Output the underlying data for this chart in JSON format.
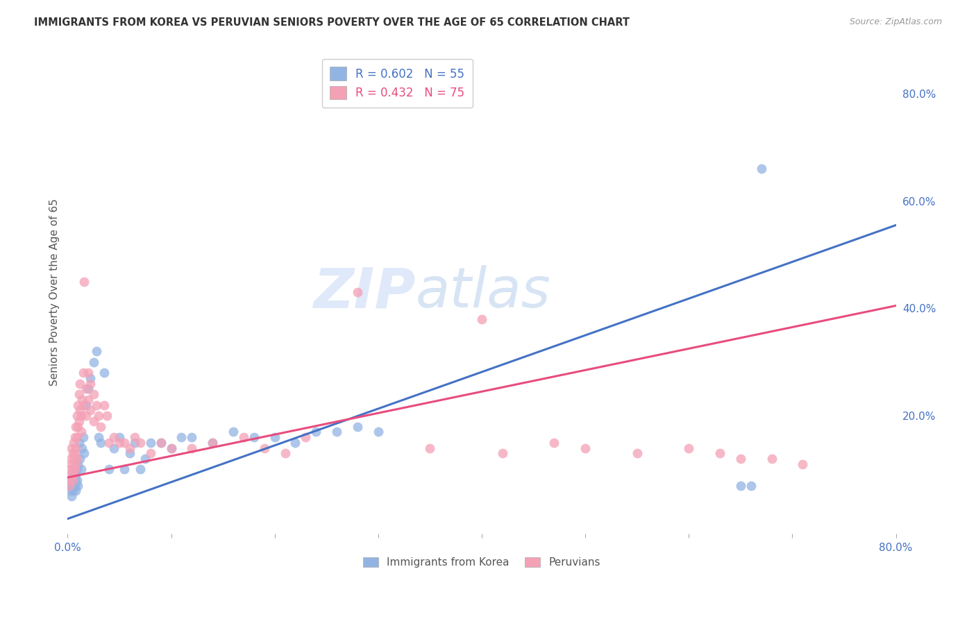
{
  "title": "IMMIGRANTS FROM KOREA VS PERUVIAN SENIORS POVERTY OVER THE AGE OF 65 CORRELATION CHART",
  "source": "Source: ZipAtlas.com",
  "ylabel": "Seniors Poverty Over the Age of 65",
  "xlim": [
    0.0,
    0.8
  ],
  "ylim": [
    -0.02,
    0.88
  ],
  "right_yticks": [
    0.0,
    0.2,
    0.4,
    0.6,
    0.8
  ],
  "right_yticklabels": [
    "",
    "20.0%",
    "40.0%",
    "60.0%",
    "80.0%"
  ],
  "xticks": [
    0.0,
    0.1,
    0.2,
    0.3,
    0.4,
    0.5,
    0.6,
    0.7,
    0.8
  ],
  "xticklabels": [
    "0.0%",
    "",
    "",
    "",
    "",
    "",
    "",
    "",
    "80.0%"
  ],
  "korea_color": "#92b4e3",
  "peru_color": "#f4a0b5",
  "korea_line_color": "#4472c4",
  "peru_line_color": "#e84c7d",
  "korea_R": 0.602,
  "korea_N": 55,
  "peru_R": 0.432,
  "peru_N": 75,
  "watermark": "ZIPatlas",
  "korea_line_x": [
    0.0,
    0.8
  ],
  "korea_line_y": [
    0.008,
    0.555
  ],
  "peru_line_x": [
    0.0,
    0.8
  ],
  "peru_line_y": [
    0.085,
    0.405
  ],
  "korea_scatter_x": [
    0.002,
    0.003,
    0.004,
    0.004,
    0.005,
    0.005,
    0.006,
    0.006,
    0.007,
    0.007,
    0.008,
    0.008,
    0.009,
    0.009,
    0.01,
    0.01,
    0.011,
    0.012,
    0.013,
    0.014,
    0.015,
    0.016,
    0.018,
    0.02,
    0.022,
    0.025,
    0.028,
    0.03,
    0.032,
    0.035,
    0.04,
    0.045,
    0.05,
    0.055,
    0.06,
    0.065,
    0.07,
    0.075,
    0.08,
    0.09,
    0.1,
    0.11,
    0.12,
    0.14,
    0.16,
    0.18,
    0.2,
    0.22,
    0.24,
    0.26,
    0.28,
    0.3,
    0.65,
    0.66,
    0.67
  ],
  "korea_scatter_y": [
    0.07,
    0.06,
    0.08,
    0.05,
    0.09,
    0.06,
    0.07,
    0.1,
    0.08,
    0.07,
    0.09,
    0.06,
    0.08,
    0.1,
    0.11,
    0.07,
    0.15,
    0.12,
    0.1,
    0.14,
    0.16,
    0.13,
    0.22,
    0.25,
    0.27,
    0.3,
    0.32,
    0.16,
    0.15,
    0.28,
    0.1,
    0.14,
    0.16,
    0.1,
    0.13,
    0.15,
    0.1,
    0.12,
    0.15,
    0.15,
    0.14,
    0.16,
    0.16,
    0.15,
    0.17,
    0.16,
    0.16,
    0.15,
    0.17,
    0.17,
    0.18,
    0.17,
    0.07,
    0.07,
    0.66
  ],
  "peru_scatter_x": [
    0.001,
    0.002,
    0.002,
    0.003,
    0.003,
    0.004,
    0.004,
    0.005,
    0.005,
    0.005,
    0.006,
    0.006,
    0.006,
    0.007,
    0.007,
    0.007,
    0.008,
    0.008,
    0.008,
    0.009,
    0.009,
    0.009,
    0.01,
    0.01,
    0.011,
    0.011,
    0.012,
    0.012,
    0.013,
    0.013,
    0.014,
    0.015,
    0.015,
    0.016,
    0.018,
    0.018,
    0.02,
    0.02,
    0.022,
    0.022,
    0.025,
    0.025,
    0.028,
    0.03,
    0.032,
    0.035,
    0.038,
    0.04,
    0.045,
    0.05,
    0.055,
    0.06,
    0.065,
    0.07,
    0.08,
    0.09,
    0.1,
    0.12,
    0.14,
    0.17,
    0.19,
    0.21,
    0.23,
    0.28,
    0.35,
    0.4,
    0.42,
    0.47,
    0.5,
    0.55,
    0.6,
    0.63,
    0.65,
    0.68,
    0.71
  ],
  "peru_scatter_y": [
    0.08,
    0.1,
    0.07,
    0.12,
    0.09,
    0.14,
    0.11,
    0.1,
    0.13,
    0.08,
    0.15,
    0.12,
    0.09,
    0.16,
    0.13,
    0.1,
    0.18,
    0.14,
    0.11,
    0.2,
    0.16,
    0.12,
    0.22,
    0.18,
    0.24,
    0.19,
    0.26,
    0.21,
    0.2,
    0.17,
    0.23,
    0.28,
    0.22,
    0.45,
    0.25,
    0.2,
    0.28,
    0.23,
    0.26,
    0.21,
    0.24,
    0.19,
    0.22,
    0.2,
    0.18,
    0.22,
    0.2,
    0.15,
    0.16,
    0.15,
    0.15,
    0.14,
    0.16,
    0.15,
    0.13,
    0.15,
    0.14,
    0.14,
    0.15,
    0.16,
    0.14,
    0.13,
    0.16,
    0.43,
    0.14,
    0.38,
    0.13,
    0.15,
    0.14,
    0.13,
    0.14,
    0.13,
    0.12,
    0.12,
    0.11
  ],
  "grid_color": "#d8d8d8",
  "background_color": "#ffffff"
}
